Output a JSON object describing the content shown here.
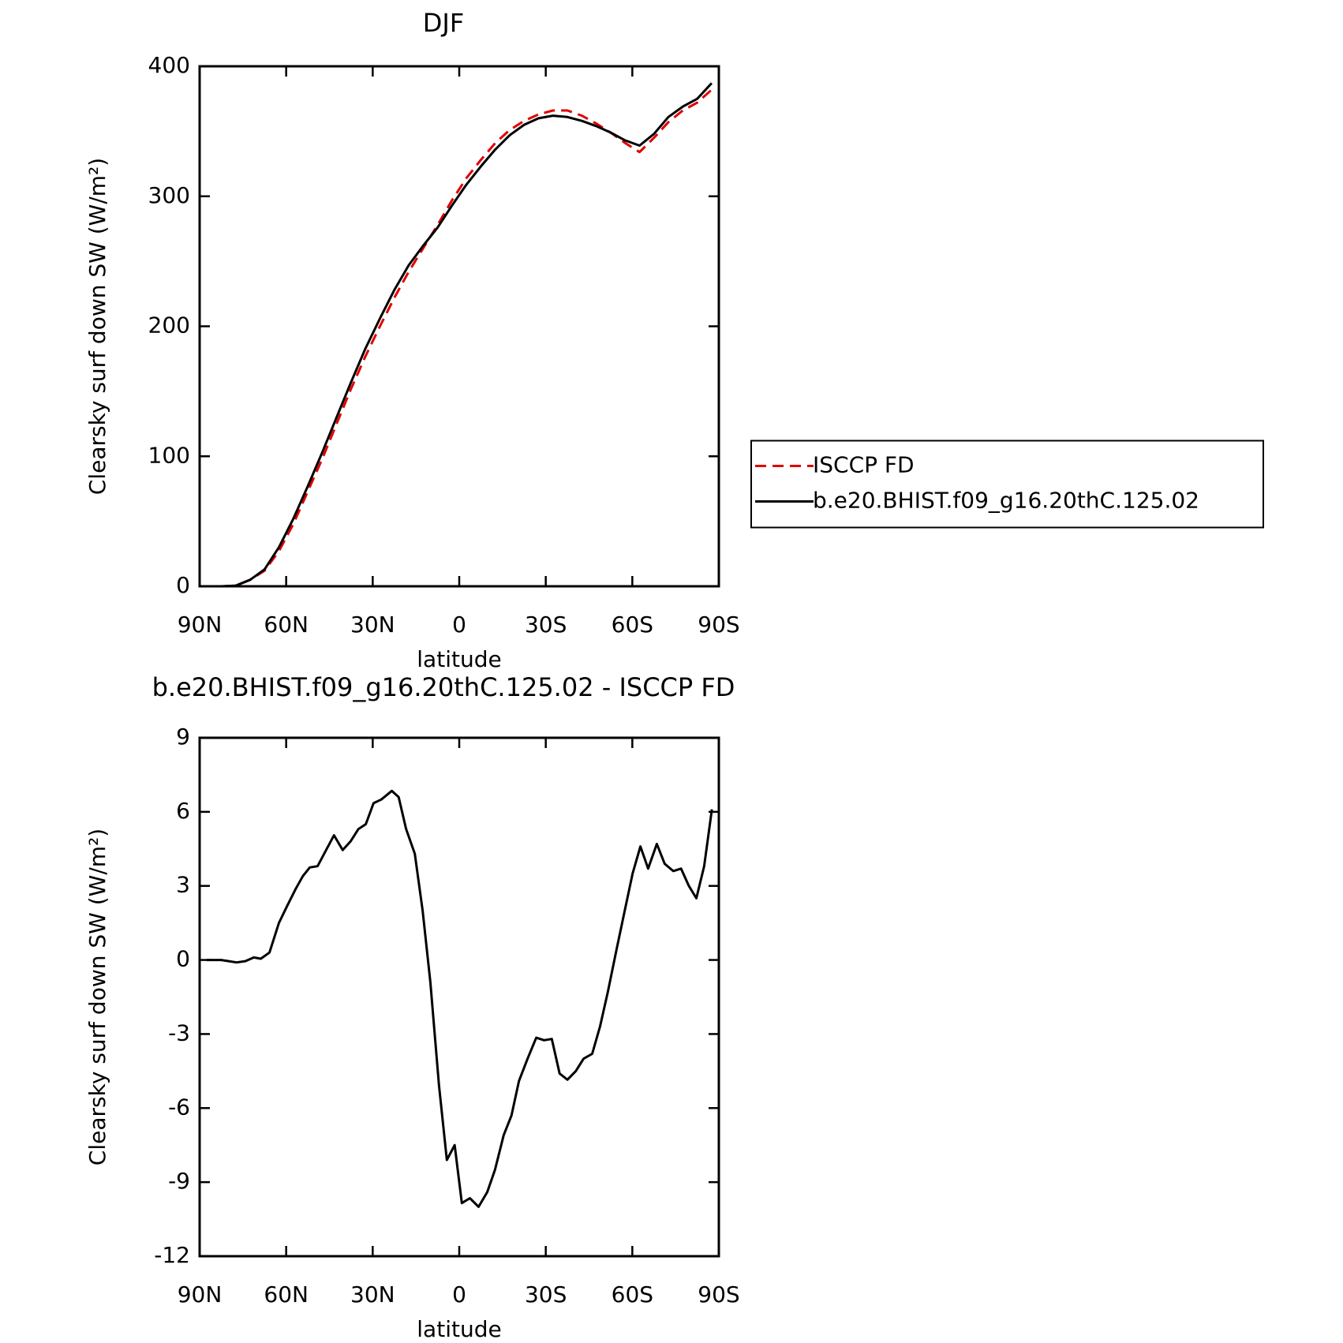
{
  "chart_data": [
    {
      "type": "line",
      "title": "DJF",
      "x_label": "latitude",
      "y_label": "Clearsky surf down SW (W/m²)",
      "xlim": [
        90,
        -90
      ],
      "xticks": [
        {
          "value": 90,
          "label": "90N"
        },
        {
          "value": 60,
          "label": "60N"
        },
        {
          "value": 30,
          "label": "30N"
        },
        0,
        {
          "value": -30,
          "label": "30S"
        },
        {
          "value": -60,
          "label": "60S"
        },
        {
          "value": -90,
          "label": "90S"
        }
      ],
      "ylim": [
        0,
        400
      ],
      "yticks": [
        0,
        100,
        200,
        300,
        400
      ],
      "legend": "right",
      "x": [
        87.5,
        82.5,
        77.5,
        72.5,
        67.5,
        62.5,
        57.5,
        52.5,
        47.5,
        42.5,
        37.5,
        32.5,
        27.5,
        22.5,
        17.5,
        12.5,
        7.5,
        2.5,
        -2.5,
        -7.5,
        -12.5,
        -17.5,
        -22.5,
        -27.5,
        -32.5,
        -37.5,
        -42.5,
        -47.5,
        -52.5,
        -57.5,
        -62.5,
        -67.5,
        -72.5,
        -77.5,
        -82.5,
        -87.5
      ],
      "series": [
        {
          "name": "ISCCP FD",
          "color": "#e00000",
          "dashed": true,
          "values": [
            0,
            0,
            0.5,
            5,
            12,
            27,
            48,
            73,
            98,
            125,
            152,
            177,
            200,
            222,
            242,
            260,
            278,
            297,
            314,
            328,
            341,
            351,
            358,
            363,
            366,
            366,
            362,
            356,
            349,
            341,
            334,
            345,
            357,
            366,
            372,
            382
          ]
        },
        {
          "name": "b.e20.BHIST.f09_g16.20thC.125.02",
          "color": "#000000",
          "dashed": false,
          "values": [
            0,
            0,
            0.5,
            5,
            13,
            30,
            52,
            77,
            103,
            130,
            157,
            183,
            206,
            228,
            247,
            262,
            276,
            293,
            309,
            323,
            336,
            347,
            355,
            360,
            362,
            361,
            358,
            354,
            349,
            343,
            339,
            348,
            361,
            369,
            375,
            387
          ]
        }
      ]
    },
    {
      "type": "line",
      "title": "b.e20.BHIST.f09_g16.20thC.125.02 - ISCCP FD",
      "x_label": "latitude",
      "y_label": "Clearsky surf down SW (W/m²)",
      "xlim": [
        90,
        -90
      ],
      "xticks": [
        {
          "value": 90,
          "label": "90N"
        },
        {
          "value": 60,
          "label": "60N"
        },
        {
          "value": 30,
          "label": "30N"
        },
        0,
        {
          "value": -30,
          "label": "30S"
        },
        {
          "value": -60,
          "label": "60S"
        },
        {
          "value": -90,
          "label": "90S"
        }
      ],
      "ylim": [
        -12,
        9
      ],
      "yticks": [
        -12,
        -9,
        -6,
        -3,
        0,
        3,
        6,
        9
      ],
      "x": [
        87.6,
        85.1,
        82.5,
        79.9,
        77.2,
        74.2,
        71.2,
        68.8,
        65.8,
        62.5,
        59.6,
        56.6,
        54.2,
        51.8,
        49.1,
        46.4,
        43.4,
        40.4,
        37.7,
        35.0,
        32.4,
        29.7,
        27.0,
        23.4,
        21.0,
        18.4,
        15.4,
        12.7,
        10.0,
        7.0,
        4.3,
        1.6,
        -0.9,
        -3.7,
        -6.7,
        -9.7,
        -12.4,
        -15.4,
        -18.1,
        -20.7,
        -23.7,
        -26.7,
        -29.4,
        -32.1,
        -34.8,
        -37.5,
        -40.4,
        -43.1,
        -46.1,
        -48.8,
        -51.5,
        -54.5,
        -57.2,
        -60.1,
        -62.8,
        -65.5,
        -68.5,
        -71.2,
        -74.2,
        -76.9,
        -79.6,
        -82.2,
        -84.9,
        -87.6
      ],
      "series": [
        {
          "color": "#000000",
          "dashed": false,
          "values": [
            0,
            0,
            0,
            -0.05,
            -0.1,
            -0.05,
            0.1,
            0.05,
            0.3,
            1.5,
            2.2,
            2.9,
            3.4,
            3.75,
            3.8,
            4.4,
            5.05,
            4.45,
            4.8,
            5.3,
            5.5,
            6.35,
            6.5,
            6.85,
            6.6,
            5.3,
            4.3,
            2.0,
            -0.9,
            -5.1,
            -8.1,
            -7.5,
            -9.85,
            -9.65,
            -10.0,
            -9.4,
            -8.5,
            -7.1,
            -6.3,
            -4.9,
            -4.0,
            -3.15,
            -3.25,
            -3.2,
            -4.6,
            -4.85,
            -4.5,
            -4.0,
            -3.8,
            -2.7,
            -1.3,
            0.4,
            1.9,
            3.5,
            4.6,
            3.7,
            4.7,
            3.9,
            3.6,
            3.7,
            3.0,
            2.5,
            3.8,
            6.1
          ]
        }
      ]
    }
  ]
}
